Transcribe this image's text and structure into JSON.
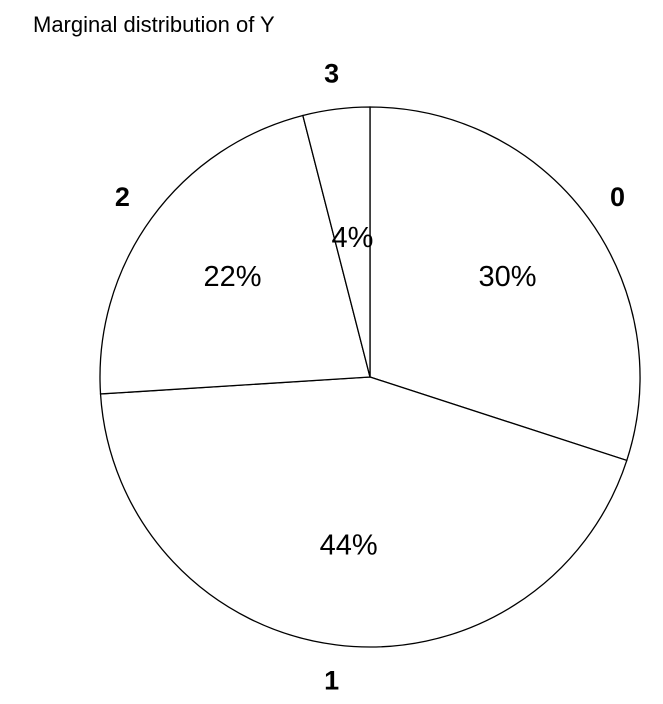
{
  "chart_data": {
    "type": "pie",
    "title": "Marginal distribution of Y",
    "slices": [
      {
        "category": "0",
        "value": 30,
        "label": "30%"
      },
      {
        "category": "1",
        "value": 44,
        "label": "44%"
      },
      {
        "category": "2",
        "value": 22,
        "label": "22%"
      },
      {
        "category": "3",
        "value": 4,
        "label": "4%"
      }
    ],
    "direction": "clockwise",
    "start": "top",
    "fill_color": "#ffffff",
    "stroke_color": "#000000"
  }
}
